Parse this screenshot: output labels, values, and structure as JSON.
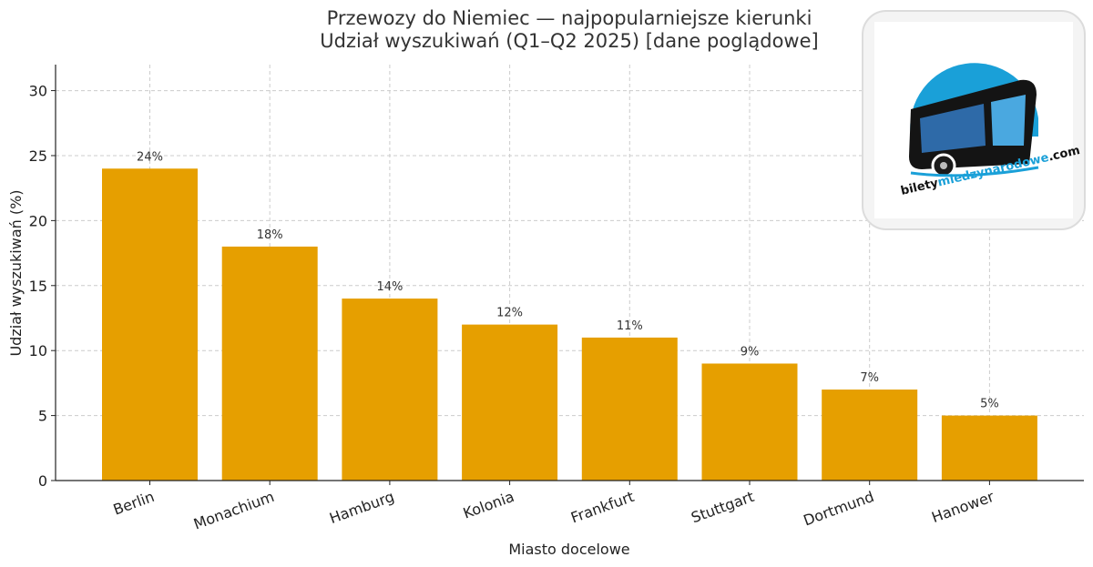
{
  "logo": {
    "text_part1": "bilety",
    "text_part2": "miedzynarodowe",
    "text_part3": ".com",
    "colors": {
      "dark": "#111111",
      "accent": "#1aa0d8"
    }
  },
  "chart_data": {
    "type": "bar",
    "title": "Przewozy do Niemiec — najpopularniejsze kierunki",
    "subtitle": "Udział wyszukiwań (Q1–Q2 2025)  [dane poglądowe]",
    "xlabel": "Miasto docelowe",
    "ylabel": "Udział wyszukiwań (%)",
    "categories": [
      "Berlin",
      "Monachium",
      "Hamburg",
      "Kolonia",
      "Frankfurt",
      "Stuttgart",
      "Dortmund",
      "Hanower"
    ],
    "values": [
      24,
      18,
      14,
      12,
      11,
      9,
      7,
      5
    ],
    "value_labels": [
      "24%",
      "18%",
      "14%",
      "12%",
      "11%",
      "9%",
      "7%",
      "5%"
    ],
    "ylim": [
      0,
      32
    ],
    "yticks": [
      0,
      5,
      10,
      15,
      20,
      25,
      30
    ],
    "grid": true,
    "bar_color": "#e69f00"
  }
}
